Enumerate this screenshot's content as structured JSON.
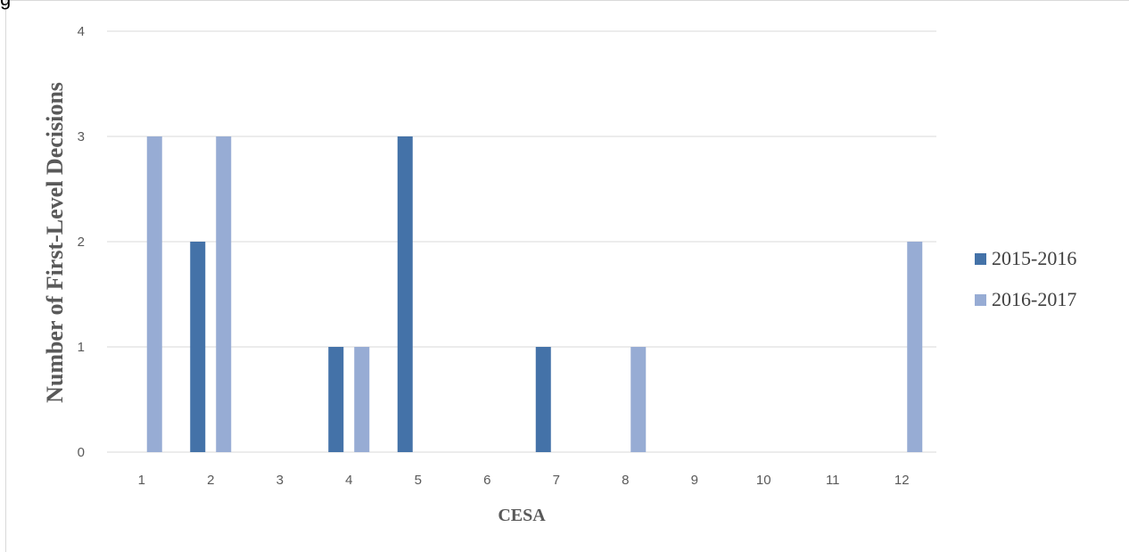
{
  "page": {
    "top_fragment": "g"
  },
  "chart_data": {
    "type": "bar",
    "title": "",
    "xlabel": "CESA",
    "ylabel": "Number of First-Level Decisions",
    "categories": [
      "1",
      "2",
      "3",
      "4",
      "5",
      "6",
      "7",
      "8",
      "9",
      "10",
      "11",
      "12"
    ],
    "ylim": [
      0,
      4
    ],
    "yticks": [
      "0",
      "1",
      "2",
      "3",
      "4"
    ],
    "grid": true,
    "legend_position": "right",
    "series": [
      {
        "name": "2015-2016",
        "color": "#4472a8",
        "values": [
          0,
          2,
          0,
          1,
          3,
          0,
          1,
          0,
          0,
          0,
          0,
          0
        ]
      },
      {
        "name": "2016-2017",
        "color": "#97acd4",
        "values": [
          3,
          3,
          0,
          1,
          0,
          0,
          0,
          1,
          0,
          0,
          0,
          2
        ]
      }
    ]
  }
}
